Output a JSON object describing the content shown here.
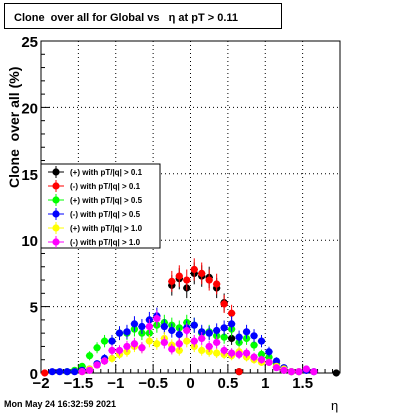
{
  "title": "Clone  over all for Global vs   η at pT > 0.11",
  "footer": "Mon May 24 16:32:59 2021",
  "chart_data": {
    "type": "scatter",
    "title": "Clone  over all for Global vs   η at pT > 0.11",
    "xlabel": "η",
    "ylabel": "Clone  over all (%)",
    "xlim": [
      -2,
      2
    ],
    "ylim": [
      0,
      25
    ],
    "grid": true,
    "legend_position": "left",
    "x_ticks": [
      -2,
      -1.5,
      -1,
      -0.5,
      0,
      0.5,
      1,
      1.5
    ],
    "x_tick_labels": [
      "−2",
      "−1.5",
      "−1",
      "−0.5",
      "0",
      "0.5",
      "1",
      "1.5"
    ],
    "y_ticks": [
      0,
      5,
      10,
      15,
      20,
      25
    ],
    "y_tick_labels": [
      "0",
      "5",
      "10",
      "15",
      "20",
      "25"
    ],
    "x": [
      -1.95,
      -1.85,
      -1.75,
      -1.65,
      -1.55,
      -1.45,
      -1.35,
      -1.25,
      -1.15,
      -1.05,
      -0.95,
      -0.85,
      -0.75,
      -0.65,
      -0.55,
      -0.45,
      -0.35,
      -0.25,
      -0.15,
      -0.05,
      0.05,
      0.15,
      0.25,
      0.35,
      0.45,
      0.55,
      0.65,
      0.75,
      0.85,
      0.95,
      1.05,
      1.15,
      1.25,
      1.35,
      1.45,
      1.55,
      1.65,
      1.75,
      1.85,
      1.95
    ],
    "series": [
      {
        "name": "(+) with pT/|q| > 0.1",
        "color": "#000000",
        "values": [
          0,
          0,
          0,
          0,
          0,
          0,
          0,
          0,
          0,
          0,
          0,
          0,
          0,
          0,
          0,
          0,
          0,
          6.6,
          7.1,
          6.4,
          7.5,
          7.3,
          7.2,
          6.4,
          5.3,
          2.6,
          0.1,
          0,
          0,
          0,
          0,
          0,
          0,
          0,
          0,
          0,
          0,
          0,
          0,
          0
        ]
      },
      {
        "name": "(-) with pT/|q| > 0.1",
        "color": "#ff0000",
        "values": [
          0,
          0,
          0,
          0,
          0,
          0,
          0,
          0,
          0,
          0,
          0,
          0,
          0,
          0,
          0,
          0,
          0,
          6.9,
          7.3,
          7.0,
          7.8,
          7.5,
          7.0,
          6.7,
          5.2,
          4.5,
          0.1,
          0,
          0,
          0,
          0,
          0,
          0,
          0,
          0,
          0,
          0,
          0,
          0,
          0
        ]
      },
      {
        "name": "(+) with pT/|q| > 0.5",
        "color": "#00ff00",
        "values": [
          0,
          0,
          0,
          0.1,
          0.2,
          0.5,
          1.3,
          1.9,
          2.4,
          2.4,
          3.0,
          3.0,
          3.3,
          3.0,
          3.0,
          3.6,
          3.8,
          3.6,
          3.4,
          3.8,
          3.6,
          3.0,
          3.1,
          2.8,
          2.7,
          3.3,
          2.3,
          2.6,
          2.1,
          1.4,
          1.2,
          0.7,
          0.2,
          0.1,
          0,
          0,
          0,
          0,
          0,
          0
        ]
      },
      {
        "name": "(-) with pT/|q| > 0.5",
        "color": "#0000ff",
        "values": [
          0,
          0.1,
          0.1,
          0.1,
          0.1,
          0.2,
          0.3,
          0.7,
          1.1,
          2.4,
          3.0,
          3.1,
          3.7,
          3.5,
          4.0,
          4.3,
          3.5,
          3.2,
          2.9,
          3.4,
          3.6,
          3.1,
          3.0,
          3.2,
          3.4,
          3.7,
          2.7,
          3.1,
          2.8,
          2.4,
          1.6,
          0.9,
          0.4,
          0.1,
          0.1,
          0.2,
          0.1,
          0,
          0,
          0
        ]
      },
      {
        "name": "(+) with pT/|q| > 1.0",
        "color": "#ffff00",
        "values": [
          0,
          0,
          0,
          0,
          0,
          0.1,
          0.3,
          0.6,
          0.9,
          1.1,
          1.4,
          1.6,
          2.0,
          1.9,
          2.4,
          2.2,
          2.6,
          2.1,
          1.7,
          2.4,
          2.0,
          1.7,
          1.6,
          1.5,
          1.4,
          1.3,
          1.6,
          1.2,
          1.0,
          0.8,
          0.8,
          0.5,
          0.3,
          0.1,
          0.1,
          0,
          0,
          0,
          0,
          0
        ]
      },
      {
        "name": "(-) with pT/|q| > 1.0",
        "color": "#ff00ff",
        "values": [
          0,
          0,
          0,
          0,
          0,
          0.1,
          0.2,
          0.6,
          0.9,
          1.7,
          1.7,
          2.0,
          2.2,
          1.9,
          3.5,
          4.1,
          2.3,
          1.8,
          2.2,
          3.2,
          2.4,
          2.6,
          2.0,
          2.3,
          1.7,
          1.5,
          1.4,
          1.5,
          1.2,
          1.0,
          0.8,
          0.4,
          0.2,
          0.1,
          0.1,
          0.3,
          0.1,
          0,
          0,
          0
        ]
      }
    ]
  }
}
